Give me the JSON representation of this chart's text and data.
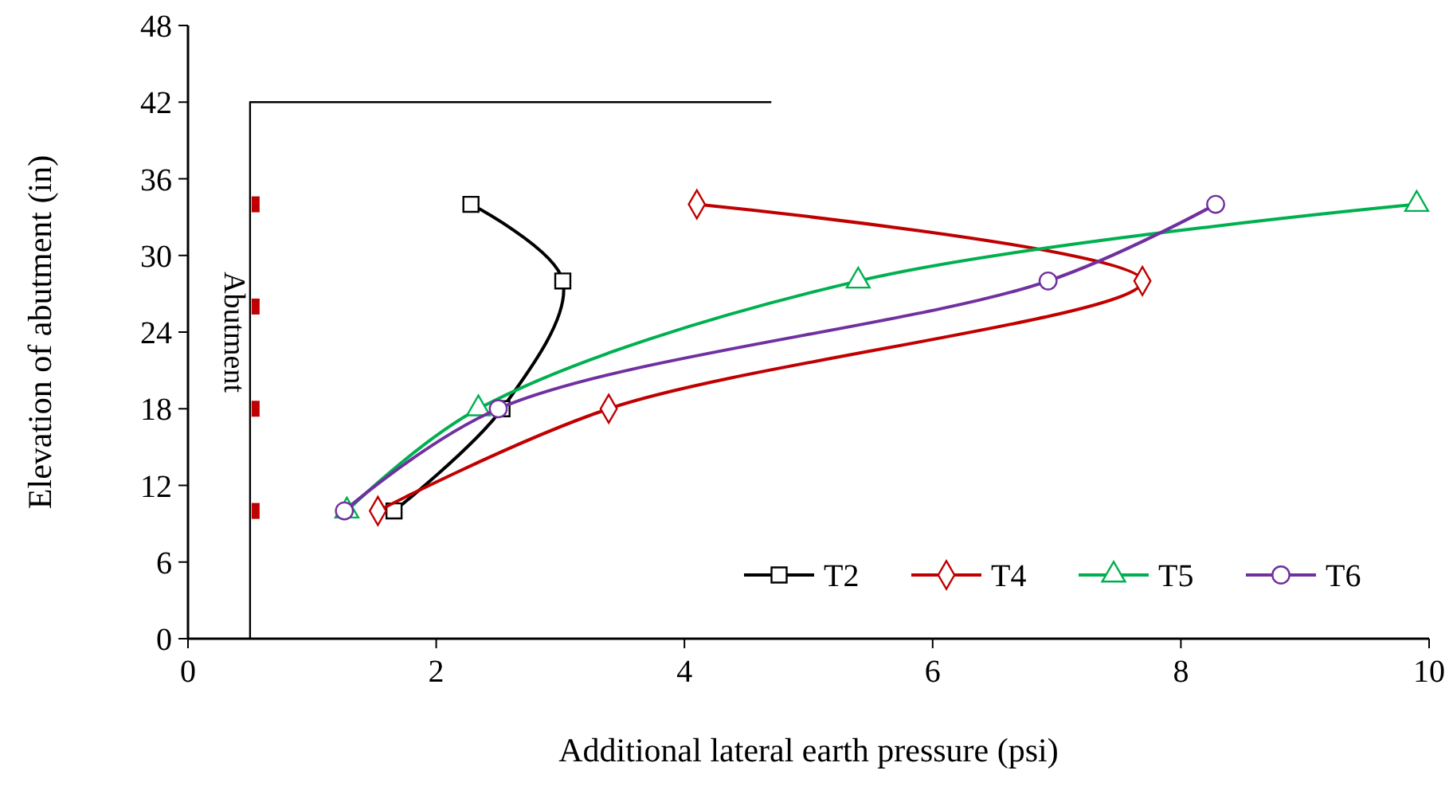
{
  "chart_data": {
    "type": "line",
    "xlabel": "Additional lateral earth pressure (psi)",
    "ylabel": "Elevation of abutment  (in)",
    "xlim": [
      0,
      10
    ],
    "xticks": [
      0,
      2,
      4,
      6,
      8,
      10
    ],
    "ylim": [
      0,
      48
    ],
    "yticks": [
      0,
      6,
      12,
      18,
      24,
      30,
      36,
      42,
      48
    ],
    "grid": false,
    "legend": "bottom right",
    "annotations": [
      {
        "text": "Abutment",
        "x": 0.5,
        "y": 24
      }
    ],
    "series": [
      {
        "x": [
          0.5,
          0.5,
          4.7
        ],
        "values": [
          0,
          42,
          42
        ],
        "color": "#000000",
        "marker": "none"
      },
      {
        "name": "T2",
        "x": [
          2.28,
          3.02,
          2.53,
          1.66
        ],
        "values": [
          34,
          28,
          18,
          10
        ],
        "color": "#000000",
        "marker": "square"
      },
      {
        "name": "T4",
        "x": [
          4.1,
          7.69,
          3.39,
          1.53
        ],
        "values": [
          34,
          28,
          18,
          10
        ],
        "color": "#c00000",
        "marker": "diamond"
      },
      {
        "name": "T5",
        "x": [
          9.9,
          5.4,
          2.34,
          1.28
        ],
        "values": [
          34,
          28,
          18,
          10
        ],
        "color": "#00b050",
        "marker": "triangle"
      },
      {
        "name": "T6",
        "x": [
          8.28,
          6.93,
          2.5,
          1.26
        ],
        "values": [
          34,
          28,
          18,
          10
        ],
        "color": "#7030a0",
        "marker": "circle"
      }
    ]
  }
}
